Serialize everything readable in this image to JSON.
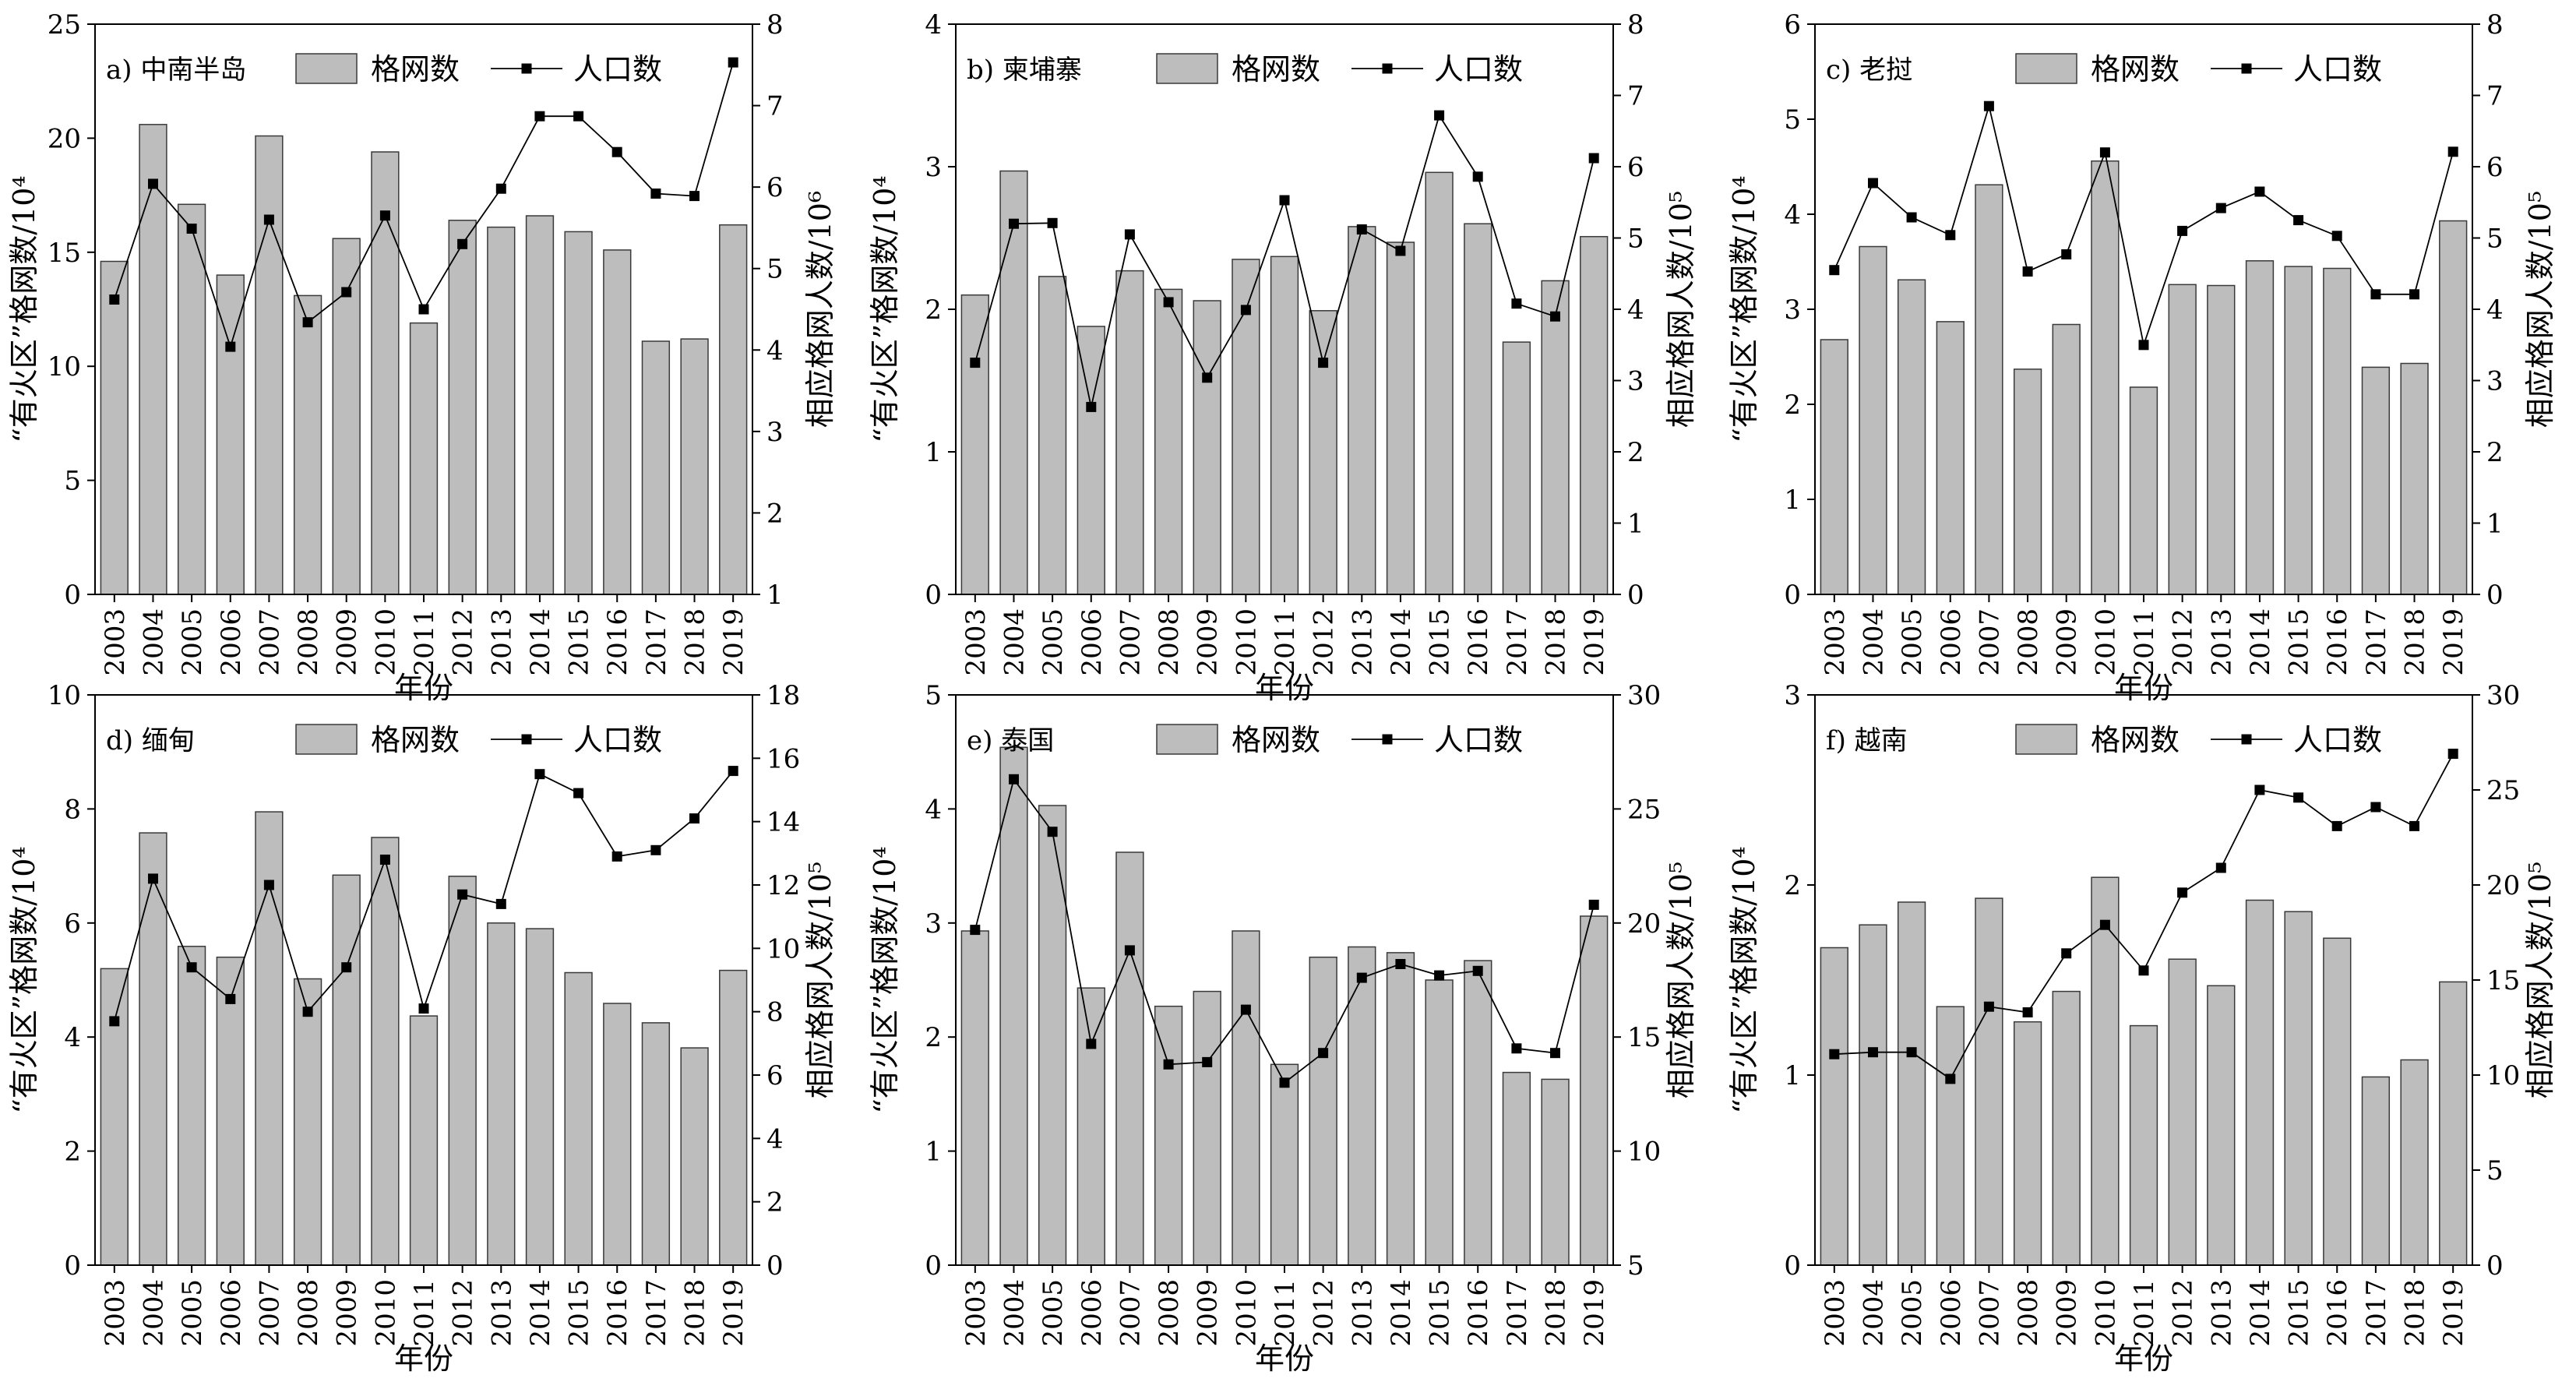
{
  "legend": {
    "bar_label": "格网数",
    "line_label": "人口数"
  },
  "colors": {
    "bar_fill": "#bdbdbd",
    "bar_stroke": "#3a3a3a",
    "line": "#000000",
    "marker": "#000000",
    "axis": "#000000"
  },
  "chart_data": [
    {
      "type": "bar+line",
      "panel_label": "a) 中南半岛",
      "xlabel": "年份",
      "ylabel_left": "“有火区”格网数/10⁴",
      "ylabel_right": "相应格网人数/10⁶",
      "categories": [
        "2003",
        "2004",
        "2005",
        "2006",
        "2007",
        "2008",
        "2009",
        "2010",
        "2011",
        "2012",
        "2013",
        "2014",
        "2015",
        "2016",
        "2017",
        "2018",
        "2019"
      ],
      "left_axis": {
        "min": 0,
        "max": 25,
        "ticks": [
          0,
          5,
          10,
          15,
          20,
          25
        ]
      },
      "right_axis": {
        "min": 1,
        "max": 8,
        "ticks": [
          1,
          2,
          3,
          4,
          5,
          6,
          7,
          8
        ]
      },
      "series": [
        {
          "name": "格网数",
          "axis": "left",
          "values": [
            14.6,
            20.6,
            17.1,
            14.0,
            20.1,
            13.1,
            15.6,
            19.4,
            11.9,
            16.4,
            16.1,
            16.6,
            15.9,
            15.1,
            11.1,
            11.2,
            16.2
          ]
        },
        {
          "name": "人口数",
          "axis": "right",
          "values": [
            4.62,
            6.04,
            5.49,
            4.04,
            5.6,
            4.34,
            4.71,
            5.65,
            4.5,
            5.3,
            5.98,
            6.87,
            6.87,
            6.43,
            5.92,
            5.89,
            7.53
          ]
        }
      ]
    },
    {
      "type": "bar+line",
      "panel_label": "b) 柬埔寨",
      "xlabel": "年份",
      "ylabel_left": "“有火区”格网数/10⁴",
      "ylabel_right": "相应格网人数/10⁵",
      "categories": [
        "2003",
        "2004",
        "2005",
        "2006",
        "2007",
        "2008",
        "2009",
        "2010",
        "2011",
        "2012",
        "2013",
        "2014",
        "2015",
        "2016",
        "2017",
        "2018",
        "2019"
      ],
      "left_axis": {
        "min": 0,
        "max": 4,
        "ticks": [
          0,
          1,
          2,
          3,
          4
        ]
      },
      "right_axis": {
        "min": 0,
        "max": 8,
        "ticks": [
          0,
          1,
          2,
          3,
          4,
          5,
          6,
          7,
          8
        ]
      },
      "series": [
        {
          "name": "格网数",
          "axis": "left",
          "values": [
            2.1,
            2.97,
            2.23,
            1.88,
            2.27,
            2.14,
            2.06,
            2.35,
            2.37,
            1.99,
            2.58,
            2.47,
            2.96,
            2.6,
            1.77,
            2.2,
            2.51
          ]
        },
        {
          "name": "人口数",
          "axis": "right",
          "values": [
            3.25,
            5.2,
            5.21,
            2.63,
            5.05,
            4.1,
            3.04,
            3.99,
            5.53,
            3.25,
            5.12,
            4.82,
            6.72,
            5.86,
            4.08,
            3.9,
            6.12
          ]
        }
      ]
    },
    {
      "type": "bar+line",
      "panel_label": "c) 老挝",
      "xlabel": "年份",
      "ylabel_left": "“有火区”格网数/10⁴",
      "ylabel_right": "相应格网人数/10⁵",
      "categories": [
        "2003",
        "2004",
        "2005",
        "2006",
        "2007",
        "2008",
        "2009",
        "2010",
        "2011",
        "2012",
        "2013",
        "2014",
        "2015",
        "2016",
        "2017",
        "2018",
        "2019"
      ],
      "left_axis": {
        "min": 0,
        "max": 6,
        "ticks": [
          0,
          1,
          2,
          3,
          4,
          5,
          6
        ]
      },
      "right_axis": {
        "min": 0,
        "max": 8,
        "ticks": [
          0,
          1,
          2,
          3,
          4,
          5,
          6,
          7,
          8
        ]
      },
      "series": [
        {
          "name": "格网数",
          "axis": "left",
          "values": [
            2.68,
            3.66,
            3.31,
            2.87,
            4.31,
            2.37,
            2.84,
            4.56,
            2.18,
            3.26,
            3.25,
            3.51,
            3.45,
            3.43,
            2.39,
            2.43,
            3.93
          ]
        },
        {
          "name": "人口数",
          "axis": "right",
          "values": [
            4.55,
            5.77,
            5.29,
            5.04,
            6.85,
            4.53,
            4.77,
            6.2,
            3.5,
            5.1,
            5.42,
            5.65,
            5.25,
            5.03,
            4.21,
            4.21,
            6.21
          ]
        }
      ]
    },
    {
      "type": "bar+line",
      "panel_label": "d) 缅甸",
      "xlabel": "年份",
      "ylabel_left": "“有火区”格网数/10⁴",
      "ylabel_right": "相应格网人数/10⁵",
      "categories": [
        "2003",
        "2004",
        "2005",
        "2006",
        "2007",
        "2008",
        "2009",
        "2010",
        "2011",
        "2012",
        "2013",
        "2014",
        "2015",
        "2016",
        "2017",
        "2018",
        "2019"
      ],
      "left_axis": {
        "min": 0,
        "max": 10,
        "ticks": [
          0,
          2,
          4,
          6,
          8,
          10
        ]
      },
      "right_axis": {
        "min": 0,
        "max": 18,
        "ticks": [
          0,
          2,
          4,
          6,
          8,
          10,
          12,
          14,
          16,
          18
        ]
      },
      "series": [
        {
          "name": "格网数",
          "axis": "left",
          "values": [
            5.2,
            7.58,
            5.59,
            5.4,
            7.95,
            5.02,
            6.84,
            7.5,
            4.37,
            6.82,
            6.0,
            5.9,
            5.13,
            4.59,
            4.25,
            3.81,
            5.17
          ]
        },
        {
          "name": "人口数",
          "axis": "right",
          "values": [
            7.7,
            12.2,
            9.4,
            8.4,
            12.0,
            8.0,
            9.4,
            12.8,
            8.1,
            11.7,
            11.4,
            15.5,
            14.9,
            12.9,
            13.1,
            14.1,
            15.6
          ]
        }
      ]
    },
    {
      "type": "bar+line",
      "panel_label": "e) 泰国",
      "xlabel": "年份",
      "ylabel_left": "“有火区”格网数/10⁴",
      "ylabel_right": "相应格网人数/10⁵",
      "categories": [
        "2003",
        "2004",
        "2005",
        "2006",
        "2007",
        "2008",
        "2009",
        "2010",
        "2011",
        "2012",
        "2013",
        "2014",
        "2015",
        "2016",
        "2017",
        "2018",
        "2019"
      ],
      "left_axis": {
        "min": 0,
        "max": 5,
        "ticks": [
          0,
          1,
          2,
          3,
          4,
          5
        ]
      },
      "right_axis": {
        "min": 5,
        "max": 30,
        "ticks": [
          5,
          10,
          15,
          20,
          25,
          30
        ]
      },
      "series": [
        {
          "name": "格网数",
          "axis": "left",
          "values": [
            2.93,
            4.54,
            4.03,
            2.43,
            3.62,
            2.27,
            2.4,
            2.93,
            1.76,
            2.7,
            2.79,
            2.74,
            2.5,
            2.67,
            1.69,
            1.63,
            3.06
          ]
        },
        {
          "name": "人口数",
          "axis": "right",
          "values": [
            19.7,
            26.3,
            24.0,
            14.7,
            18.8,
            13.8,
            13.9,
            16.2,
            13.0,
            14.3,
            17.6,
            18.2,
            17.7,
            17.9,
            14.5,
            14.3,
            20.8
          ]
        }
      ]
    },
    {
      "type": "bar+line",
      "panel_label": "f) 越南",
      "xlabel": "年份",
      "ylabel_left": "“有火区”格网数/10⁴",
      "ylabel_right": "相应格网人数/10⁵",
      "categories": [
        "2003",
        "2004",
        "2005",
        "2006",
        "2007",
        "2008",
        "2009",
        "2010",
        "2011",
        "2012",
        "2013",
        "2014",
        "2015",
        "2016",
        "2017",
        "2018",
        "2019"
      ],
      "left_axis": {
        "min": 0,
        "max": 3,
        "ticks": [
          0,
          1,
          2,
          3
        ]
      },
      "right_axis": {
        "min": 0,
        "max": 30,
        "ticks": [
          0,
          5,
          10,
          15,
          20,
          25,
          30
        ]
      },
      "series": [
        {
          "name": "格网数",
          "axis": "left",
          "values": [
            1.67,
            1.79,
            1.91,
            1.36,
            1.93,
            1.28,
            1.44,
            2.04,
            1.26,
            1.61,
            1.47,
            1.92,
            1.86,
            1.72,
            0.99,
            1.08,
            1.49
          ]
        },
        {
          "name": "人口数",
          "axis": "right",
          "values": [
            11.1,
            11.2,
            11.2,
            9.8,
            13.6,
            13.3,
            16.4,
            17.9,
            15.5,
            19.6,
            20.9,
            25.0,
            24.6,
            23.1,
            24.1,
            23.1,
            26.9
          ]
        }
      ]
    }
  ]
}
